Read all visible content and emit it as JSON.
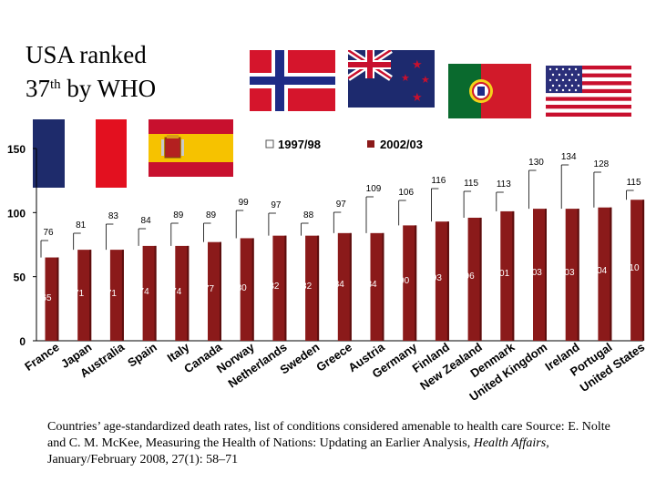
{
  "title": {
    "line1": "USA ranked",
    "line2_prefix": "37",
    "line2_sup": "th",
    "line2_suffix": " by WHO"
  },
  "flags": [
    "norway-flag",
    "new-zealand-flag",
    "portugal-flag",
    "usa-flag",
    "france-flag",
    "spain-flag"
  ],
  "colors": {
    "bar": "#8b1a1a",
    "bar_dark": "#5c0d0d",
    "line": "#000000",
    "label_white": "#ffffff"
  },
  "chart_data": {
    "type": "bar",
    "series": [
      {
        "name": "1997/98",
        "values": [
          76,
          81,
          83,
          84,
          89,
          89,
          99,
          97,
          88,
          97,
          109,
          106,
          116,
          115,
          113,
          130,
          134,
          128,
          115
        ]
      },
      {
        "name": "2002/03",
        "values": [
          65,
          71,
          71,
          74,
          74,
          77,
          80,
          82,
          82,
          84,
          84,
          90,
          93,
          96,
          101,
          103,
          103,
          104,
          110
        ]
      }
    ],
    "categories": [
      "France",
      "Japan",
      "Australia",
      "Spain",
      "Italy",
      "Canada",
      "Norway",
      "Netherlands",
      "Sweden",
      "Greece",
      "Austria",
      "Germany",
      "Finland",
      "New Zealand",
      "Denmark",
      "United Kingdom",
      "Ireland",
      "Portugal",
      "United States"
    ],
    "ylim": [
      0,
      150
    ],
    "yticks": [
      0,
      50,
      100,
      150
    ],
    "legend": {
      "series1": "1997/98",
      "series2": "2002/03"
    }
  },
  "caption": {
    "text1": "Countries’ age-standardized death rates, list of conditions considered amenable to health care Source: E. Nolte and C. M. McKee, Measuring the Health of Nations: Updating an Earlier Analysis, ",
    "journal": "Health Affairs,",
    "text2": " January/February 2008, 27(1): 58–71"
  }
}
